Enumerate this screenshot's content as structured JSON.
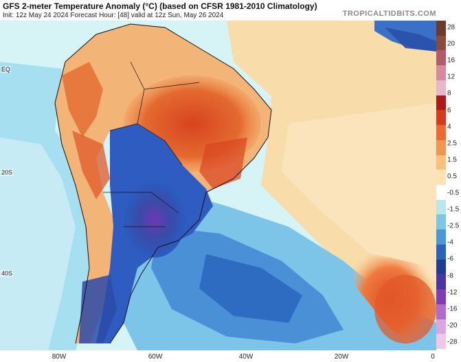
{
  "header": {
    "title": "GFS 2-meter Temperature Anomaly (°C) (based on CFSR 1981-2010 Climatology)",
    "subtitle": "Init: 12z May 24 2024   Forecast Hour: [48]   valid at 12z Sun, May 26 2024",
    "brand": "TROPICALTIDBITS.COM"
  },
  "map": {
    "lat_labels": [
      "EQ",
      "20S",
      "40S"
    ],
    "lon_labels": [
      "80W",
      "60W",
      "40W",
      "20W",
      "0"
    ]
  },
  "colorbar": {
    "labels": [
      "28",
      "20",
      "16",
      "12",
      "8",
      "6",
      "4",
      "2.5",
      "1.5",
      "0.5",
      "-0.5",
      "-1.5",
      "-2.5",
      "-4",
      "-6",
      "-8",
      "-12",
      "-16",
      "-20",
      "-28"
    ],
    "colors": [
      "#6b3a2a",
      "#8c4a3a",
      "#b45a6c",
      "#d68aa0",
      "#e8b8c8",
      "#b01818",
      "#d43a1e",
      "#ea6a32",
      "#f29550",
      "#f8c27e",
      "#fde3b4",
      "#ffffff",
      "#b6e8ec",
      "#7cc6e6",
      "#4a98d4",
      "#2a64b8",
      "#1e3e96",
      "#4a34a8",
      "#7a3fb8",
      "#b06ccc",
      "#dca6e0",
      "#f0c8e8"
    ]
  }
}
